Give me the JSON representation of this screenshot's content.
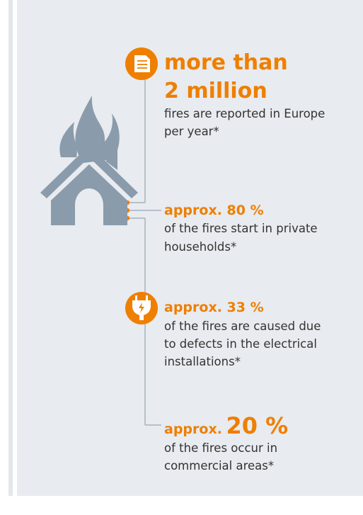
{
  "items": [
    {
      "prefix": "more than",
      "value": "2 million",
      "lines": [
        "fires are reported in Europe",
        "per year*"
      ]
    },
    {
      "prefix": "approx.",
      "value": "80 %",
      "lines": [
        "of the fires start in private",
        "households*"
      ]
    },
    {
      "prefix": "approx.",
      "value": "33 %",
      "lines": [
        "of the fires are caused due",
        "to defects in the electrical",
        "installations*"
      ]
    },
    {
      "prefix": "approx.",
      "value": "20 %",
      "lines": [
        "of the fires occur in",
        "commercial areas*"
      ]
    }
  ]
}
